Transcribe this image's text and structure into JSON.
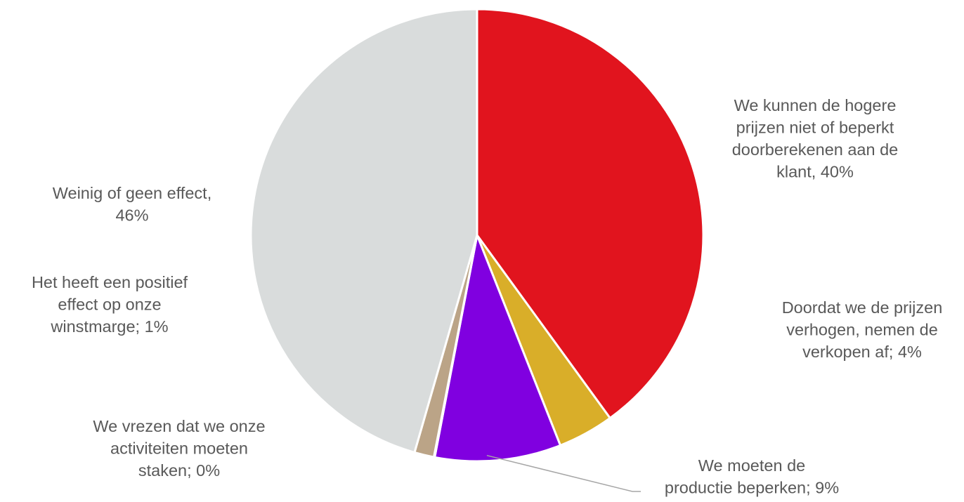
{
  "chart_data": {
    "type": "pie",
    "title": "",
    "start_angle_deg": 0,
    "direction": "clockwise",
    "slices": [
      {
        "label": [
          "We kunnen de hogere",
          "prijzen niet of beperkt",
          "doorberekenen  aan de",
          "klant, 40%"
        ],
        "value": 40,
        "color": "#e1141e"
      },
      {
        "label": [
          "Doordat we de prijzen",
          "verhogen, nemen de",
          "verkopen  af; 4%"
        ],
        "value": 4,
        "color": "#d9ae29"
      },
      {
        "label": [
          "We moeten de",
          "productie beperken; 9%"
        ],
        "value": 9,
        "color": "#8000e0"
      },
      {
        "label": [
          "We vrezen dat we onze",
          "activiteiten moeten",
          "staken; 0%"
        ],
        "value": 0.06,
        "color": "#7a7a7a"
      },
      {
        "label": [
          "Het heeft een positief",
          "effect op onze",
          "winstmarge; 1%"
        ],
        "value": 1.4,
        "color": "#bba487"
      },
      {
        "label": [
          "Weinig of geen effect,",
          "46%"
        ],
        "value": 45.54,
        "color": "#d9dcdc"
      }
    ],
    "legend": "none",
    "slice_border_color": "#ffffff"
  }
}
